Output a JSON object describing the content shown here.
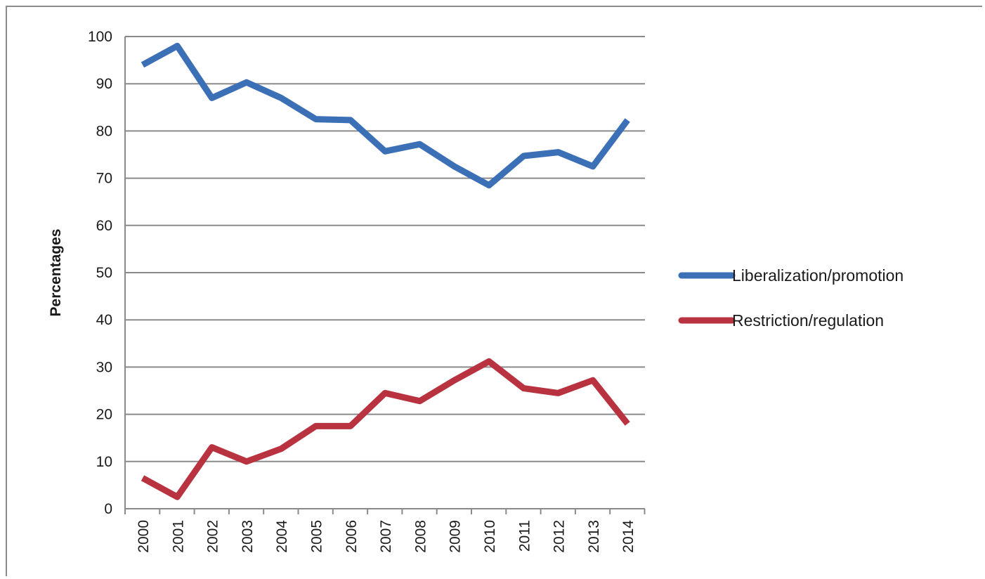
{
  "chart_data": {
    "type": "line",
    "title": "",
    "xlabel": "",
    "ylabel": "Percentages",
    "ylim": [
      0,
      100
    ],
    "yticks": [
      "0",
      "10",
      "20",
      "30",
      "40",
      "50",
      "60",
      "70",
      "80",
      "90",
      "100"
    ],
    "categories": [
      "2000",
      "2001",
      "2002",
      "2003",
      "2004",
      "2005",
      "2006",
      "2007",
      "2008",
      "2009",
      "2010",
      "2011",
      "2012",
      "2013",
      "2014"
    ],
    "grid": true,
    "legend_position": "right",
    "series": [
      {
        "name": "Liberalization/promotion",
        "color": "#3b6fb6",
        "values": [
          94,
          98,
          87,
          90.3,
          87,
          82.5,
          82.3,
          75.7,
          77.2,
          72.5,
          68.5,
          74.7,
          75.5,
          72.5,
          82.3
        ]
      },
      {
        "name": "Restriction/regulation",
        "color": "#b8323f",
        "values": [
          6.5,
          2.5,
          13,
          10,
          12.7,
          17.5,
          17.5,
          24.5,
          22.8,
          27.2,
          31.2,
          25.5,
          24.5,
          27.2,
          18
        ]
      }
    ]
  }
}
